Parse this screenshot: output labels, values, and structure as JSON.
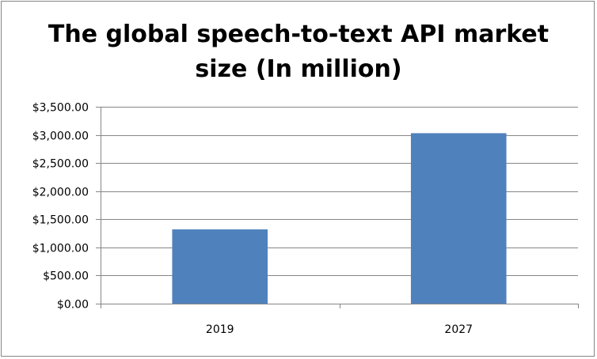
{
  "chart_data": {
    "type": "bar",
    "title_lines": [
      "The global speech-to-text API market",
      "size (In million)"
    ],
    "categories": [
      "2019",
      "2027"
    ],
    "values": [
      1320,
      3030
    ],
    "ylim": [
      0,
      3500
    ],
    "y_tick_step": 500,
    "y_tick_labels": [
      "$0.00",
      "$500.00",
      "$1,000.00",
      "$1,500.00",
      "$2,000.00",
      "$2,500.00",
      "$3,000.00",
      "$3,500.00"
    ],
    "grid": true,
    "legend": "none",
    "colors": {
      "bar": "#4f81bd",
      "grid": "#868686",
      "axis": "#868686"
    }
  }
}
